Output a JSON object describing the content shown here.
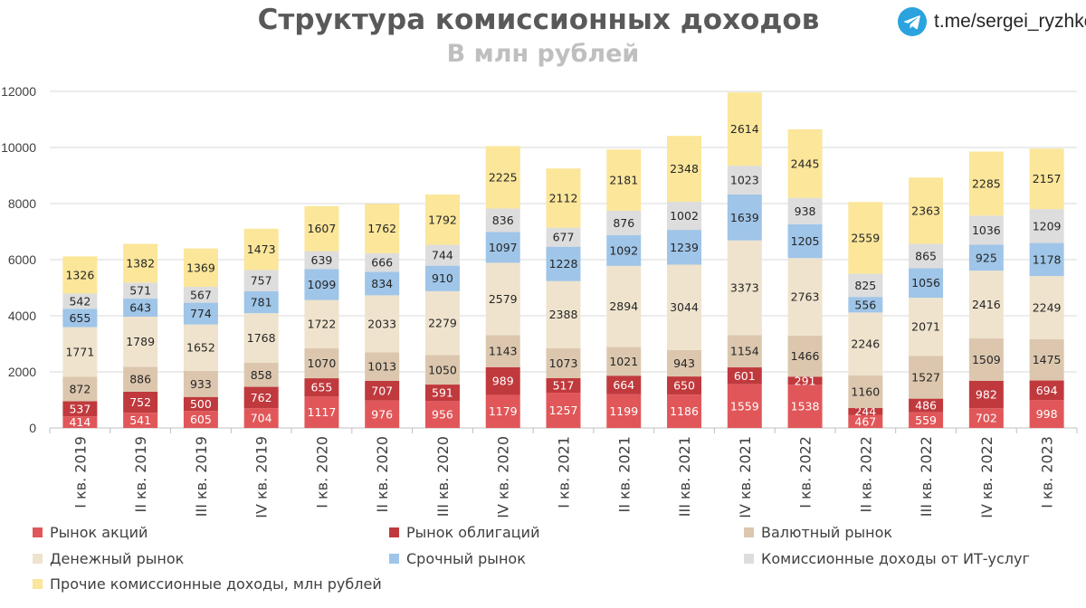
{
  "header": {
    "title": "Структура комиссионных доходов",
    "subtitle": "В млн рублей"
  },
  "brand": {
    "icon": "telegram-icon",
    "handle": "t.me/sergei_ryzhkov"
  },
  "chart_data": {
    "type": "bar",
    "stacked": true,
    "title": "Структура комиссионных доходов",
    "subtitle": "В млн рублей",
    "xlabel": "",
    "ylabel": "",
    "ylim": [
      0,
      12000
    ],
    "yticks": [
      0,
      2000,
      4000,
      6000,
      8000,
      10000,
      12000
    ],
    "ytick_labels": [
      "0",
      "2000",
      "4000",
      "6000",
      "8000",
      "10000",
      "12000"
    ],
    "grid": true,
    "legend_position": "bottom",
    "categories": [
      "I кв. 2019",
      "II кв. 2019",
      "III кв. 2019",
      "IV кв. 2019",
      "I кв. 2020",
      "II кв. 2020",
      "III кв. 2020",
      "IV кв. 2020",
      "I кв. 2021",
      "II кв. 2021",
      "III кв. 2021",
      "IV кв. 2021",
      "I кв. 2022",
      "II кв. 2022",
      "III кв. 2022",
      "IV кв. 2022",
      "I кв. 2023"
    ],
    "series": [
      {
        "name": "Рынок акций",
        "color": "#e15759",
        "label_color": "#ffffff",
        "values": [
          414,
          541,
          605,
          704,
          1117,
          976,
          956,
          1179,
          1257,
          1199,
          1186,
          1559,
          1538,
          467,
          559,
          702,
          998
        ]
      },
      {
        "name": "Рынок облигаций",
        "color": "#c0393d",
        "label_color": "#ffffff",
        "values": [
          537,
          752,
          500,
          762,
          655,
          707,
          591,
          989,
          517,
          664,
          650,
          601,
          291,
          244,
          486,
          982,
          694
        ]
      },
      {
        "name": "Валютный рынок",
        "color": "#dcc7ae",
        "label_color": "#262626",
        "values": [
          872,
          886,
          933,
          858,
          1070,
          1013,
          1050,
          1143,
          1073,
          1021,
          943,
          1154,
          1466,
          1160,
          1527,
          1509,
          1475
        ]
      },
      {
        "name": "Денежный рынок",
        "color": "#efe3cd",
        "label_color": "#262626",
        "values": [
          1771,
          1789,
          1652,
          1768,
          1722,
          2033,
          2279,
          2579,
          2388,
          2894,
          3044,
          3373,
          2763,
          2246,
          2071,
          2416,
          2249
        ]
      },
      {
        "name": "Срочный рынок",
        "color": "#9fc5e8",
        "label_color": "#262626",
        "values": [
          655,
          643,
          774,
          781,
          1099,
          834,
          910,
          1097,
          1228,
          1092,
          1239,
          1639,
          1205,
          556,
          1056,
          925,
          1178
        ]
      },
      {
        "name": "Комиссионные доходы от ИТ-услуг",
        "color": "#dddddd",
        "label_color": "#262626",
        "values": [
          542,
          571,
          567,
          757,
          639,
          666,
          744,
          836,
          677,
          876,
          1002,
          1023,
          938,
          825,
          865,
          1036,
          1209
        ]
      },
      {
        "name": "Прочие комиссионные доходы, млн рублей",
        "color": "#fbe69a",
        "label_color": "#262626",
        "values": [
          1326,
          1382,
          1369,
          1473,
          1607,
          1762,
          1792,
          2225,
          2112,
          2181,
          2348,
          2614,
          2445,
          2559,
          2363,
          2285,
          2157
        ]
      }
    ]
  }
}
